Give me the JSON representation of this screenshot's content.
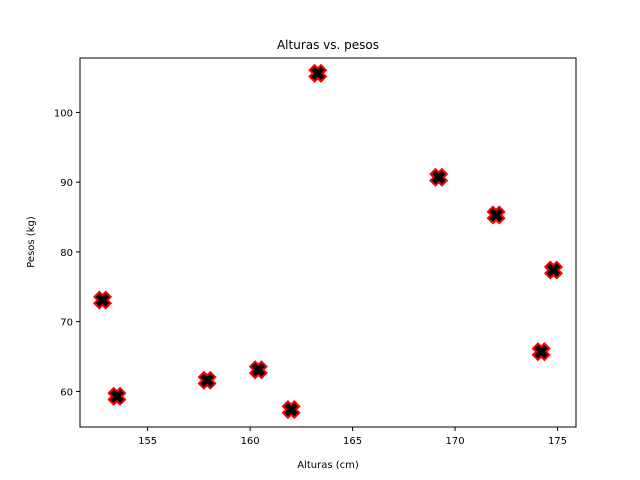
{
  "chart_data": {
    "type": "scatter",
    "title": "Alturas vs. pesos",
    "xlabel": "Alturas (cm)",
    "ylabel": "Pesos (kg)",
    "xlim": [
      151.7,
      175.9
    ],
    "ylim": [
      54.9,
      107.8
    ],
    "xticks": [
      155,
      160,
      165,
      170,
      175
    ],
    "yticks": [
      60,
      70,
      80,
      90,
      100
    ],
    "grid": false,
    "marker": "X",
    "marker_face_color": "#000000",
    "marker_edge_color": "#ff0000",
    "points": [
      {
        "x": 152.8,
        "y": 73.1
      },
      {
        "x": 153.5,
        "y": 59.3
      },
      {
        "x": 157.9,
        "y": 61.6
      },
      {
        "x": 160.4,
        "y": 63.1
      },
      {
        "x": 162.0,
        "y": 57.4
      },
      {
        "x": 163.3,
        "y": 105.6
      },
      {
        "x": 169.2,
        "y": 90.7
      },
      {
        "x": 172.0,
        "y": 85.3
      },
      {
        "x": 174.2,
        "y": 65.7
      },
      {
        "x": 174.8,
        "y": 77.4
      }
    ]
  }
}
